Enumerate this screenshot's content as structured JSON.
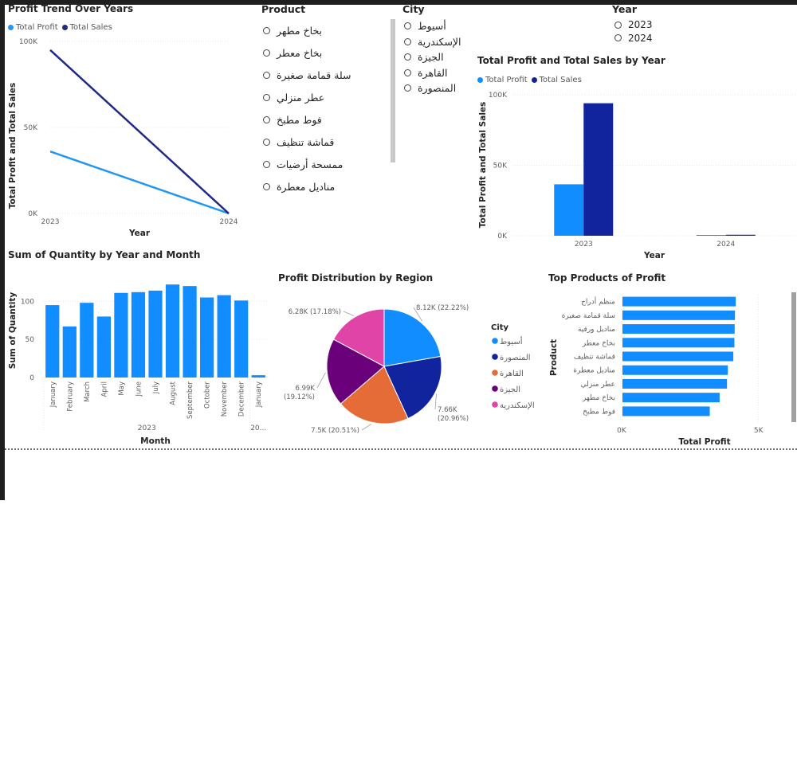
{
  "colors": {
    "profit": "#118DFF",
    "sales": "#12239E",
    "trend_sales": "#1f2a86",
    "trend_profit": "#2196f3",
    "pie": [
      "#118DFF",
      "#12239E",
      "#E66C37",
      "#6B007B",
      "#E044A7"
    ]
  },
  "slicers": {
    "product": {
      "title": "Product",
      "items": [
        "بخاخ مطهر",
        "بخاخ معطر",
        "سلة قمامة صغيرة",
        "عطر منزلي",
        "فوط مطبخ",
        "قماشة تنظيف",
        "ممسحة أرضيات",
        "مناديل معطرة"
      ]
    },
    "city": {
      "title": "City",
      "items": [
        "أسيوط",
        "الإسكندرية",
        "الجيزة",
        "القاهرة",
        "المنصورة"
      ]
    },
    "year": {
      "title": "Year",
      "items": [
        "2023",
        "2024"
      ]
    }
  },
  "chart_data": [
    {
      "id": "trend",
      "type": "line",
      "title": "Profit Trend Over Years",
      "xlabel": "Year",
      "ylabel": "Total Profit and Total Sales",
      "x": [
        "2023",
        "2024"
      ],
      "ylim": [
        0,
        100000
      ],
      "yticks": [
        "0K",
        "50K",
        "100K"
      ],
      "legend": "top-left",
      "series": [
        {
          "name": "Total Profit",
          "values": [
            36000,
            0
          ]
        },
        {
          "name": "Total Sales",
          "values": [
            95000,
            0
          ]
        }
      ]
    },
    {
      "id": "byyear",
      "type": "bar",
      "title": "Total Profit and Total Sales by Year",
      "xlabel": "Year",
      "ylabel": "Total Profit and Total Sales",
      "categories": [
        "2023",
        "2024"
      ],
      "ylim": [
        0,
        100000
      ],
      "yticks": [
        "0K",
        "50K",
        "100K"
      ],
      "legend": "top-left",
      "series": [
        {
          "name": "Total Profit",
          "values": [
            36500,
            300
          ]
        },
        {
          "name": "Total Sales",
          "values": [
            94000,
            700
          ]
        }
      ]
    },
    {
      "id": "quantity",
      "type": "bar",
      "title": "Sum of Quantity by Year and Month",
      "xlabel": "Month",
      "ylabel": "Sum of Quantity",
      "categories": [
        "January",
        "February",
        "March",
        "April",
        "May",
        "June",
        "July",
        "August",
        "September",
        "October",
        "November",
        "December",
        "January"
      ],
      "year_groups": [
        {
          "label": "2023",
          "count": 12
        },
        {
          "label": "20...",
          "count": 1
        }
      ],
      "values": [
        95,
        67,
        98,
        80,
        111,
        112,
        114,
        122,
        120,
        105,
        108,
        101,
        3
      ],
      "ylim": [
        0,
        140
      ],
      "yticks": [
        "0",
        "50",
        "100"
      ]
    },
    {
      "id": "pie",
      "type": "pie",
      "title": "Profit Distribution by Region",
      "legend_title": "City",
      "slices": [
        {
          "city": "أسيوط",
          "value": 8120,
          "label": "8.12K (22.22%)",
          "percent": 22.22
        },
        {
          "city": "المنصورة",
          "value": 7660,
          "label_value": "7.66K",
          "label_pct": "(20.96%)",
          "percent": 20.96
        },
        {
          "city": "القاهرة",
          "value": 7500,
          "label": "7.5K (20.51%)",
          "percent": 20.51
        },
        {
          "city": "الجيزة",
          "value": 6990,
          "label_value": "6.99K",
          "label_pct": "(19.12%)",
          "percent": 19.12
        },
        {
          "city": "الإسكندرية",
          "value": 6280,
          "label": "6.28K (17.18%)",
          "percent": 17.18
        }
      ]
    },
    {
      "id": "topproducts",
      "type": "bar",
      "orientation": "horizontal",
      "title": "Top Products of Profit",
      "xlabel": "Total Profit",
      "ylabel": "Product",
      "categories": [
        "منظم أدراج",
        "سلة قمامة صغيرة",
        "مناديل ورقية",
        "بخاخ معطر",
        "قماشة تنظيف",
        "مناديل معطرة",
        "عطر منزلي",
        "بخاخ مطهر",
        "فوط مطبخ"
      ],
      "values": [
        4170,
        4140,
        4130,
        4120,
        4080,
        3880,
        3850,
        3580,
        3220
      ],
      "xlim": [
        0,
        6000
      ],
      "xticks": [
        {
          "v": 0,
          "label": "0K"
        },
        {
          "v": 5000,
          "label": "5K"
        }
      ]
    }
  ]
}
